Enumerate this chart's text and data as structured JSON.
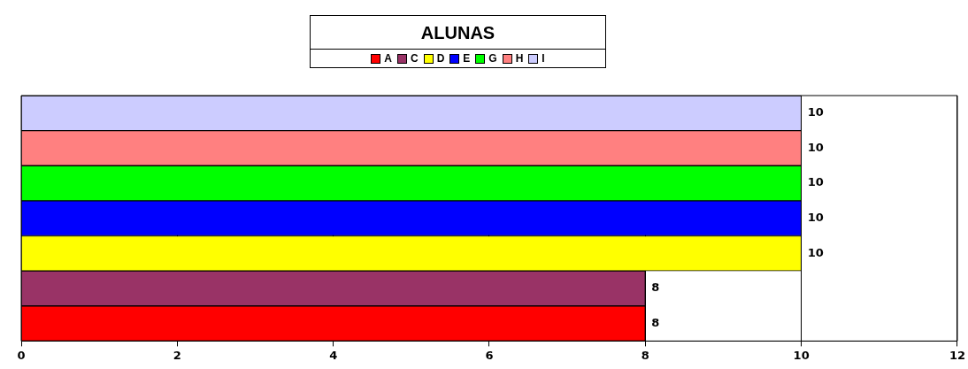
{
  "chart_data": {
    "type": "bar",
    "orientation": "horizontal",
    "title": "ALUNAS",
    "categories": [
      null
    ],
    "series": [
      {
        "name": "A",
        "color": "#ff0000",
        "values": [
          8
        ]
      },
      {
        "name": "C",
        "color": "#993366",
        "values": [
          8
        ]
      },
      {
        "name": "D",
        "color": "#ffff00",
        "values": [
          10
        ]
      },
      {
        "name": "E",
        "color": "#0000ff",
        "values": [
          10
        ]
      },
      {
        "name": "G",
        "color": "#00ff00",
        "values": [
          10
        ]
      },
      {
        "name": "H",
        "color": "#ff8080",
        "values": [
          10
        ]
      },
      {
        "name": "I",
        "color": "#ccccff",
        "values": [
          10
        ]
      }
    ],
    "xlim": [
      0,
      12
    ],
    "xticks": [
      0,
      2,
      4,
      6,
      8,
      10,
      12
    ],
    "grid": "x",
    "legend": "top",
    "data_labels": true
  }
}
